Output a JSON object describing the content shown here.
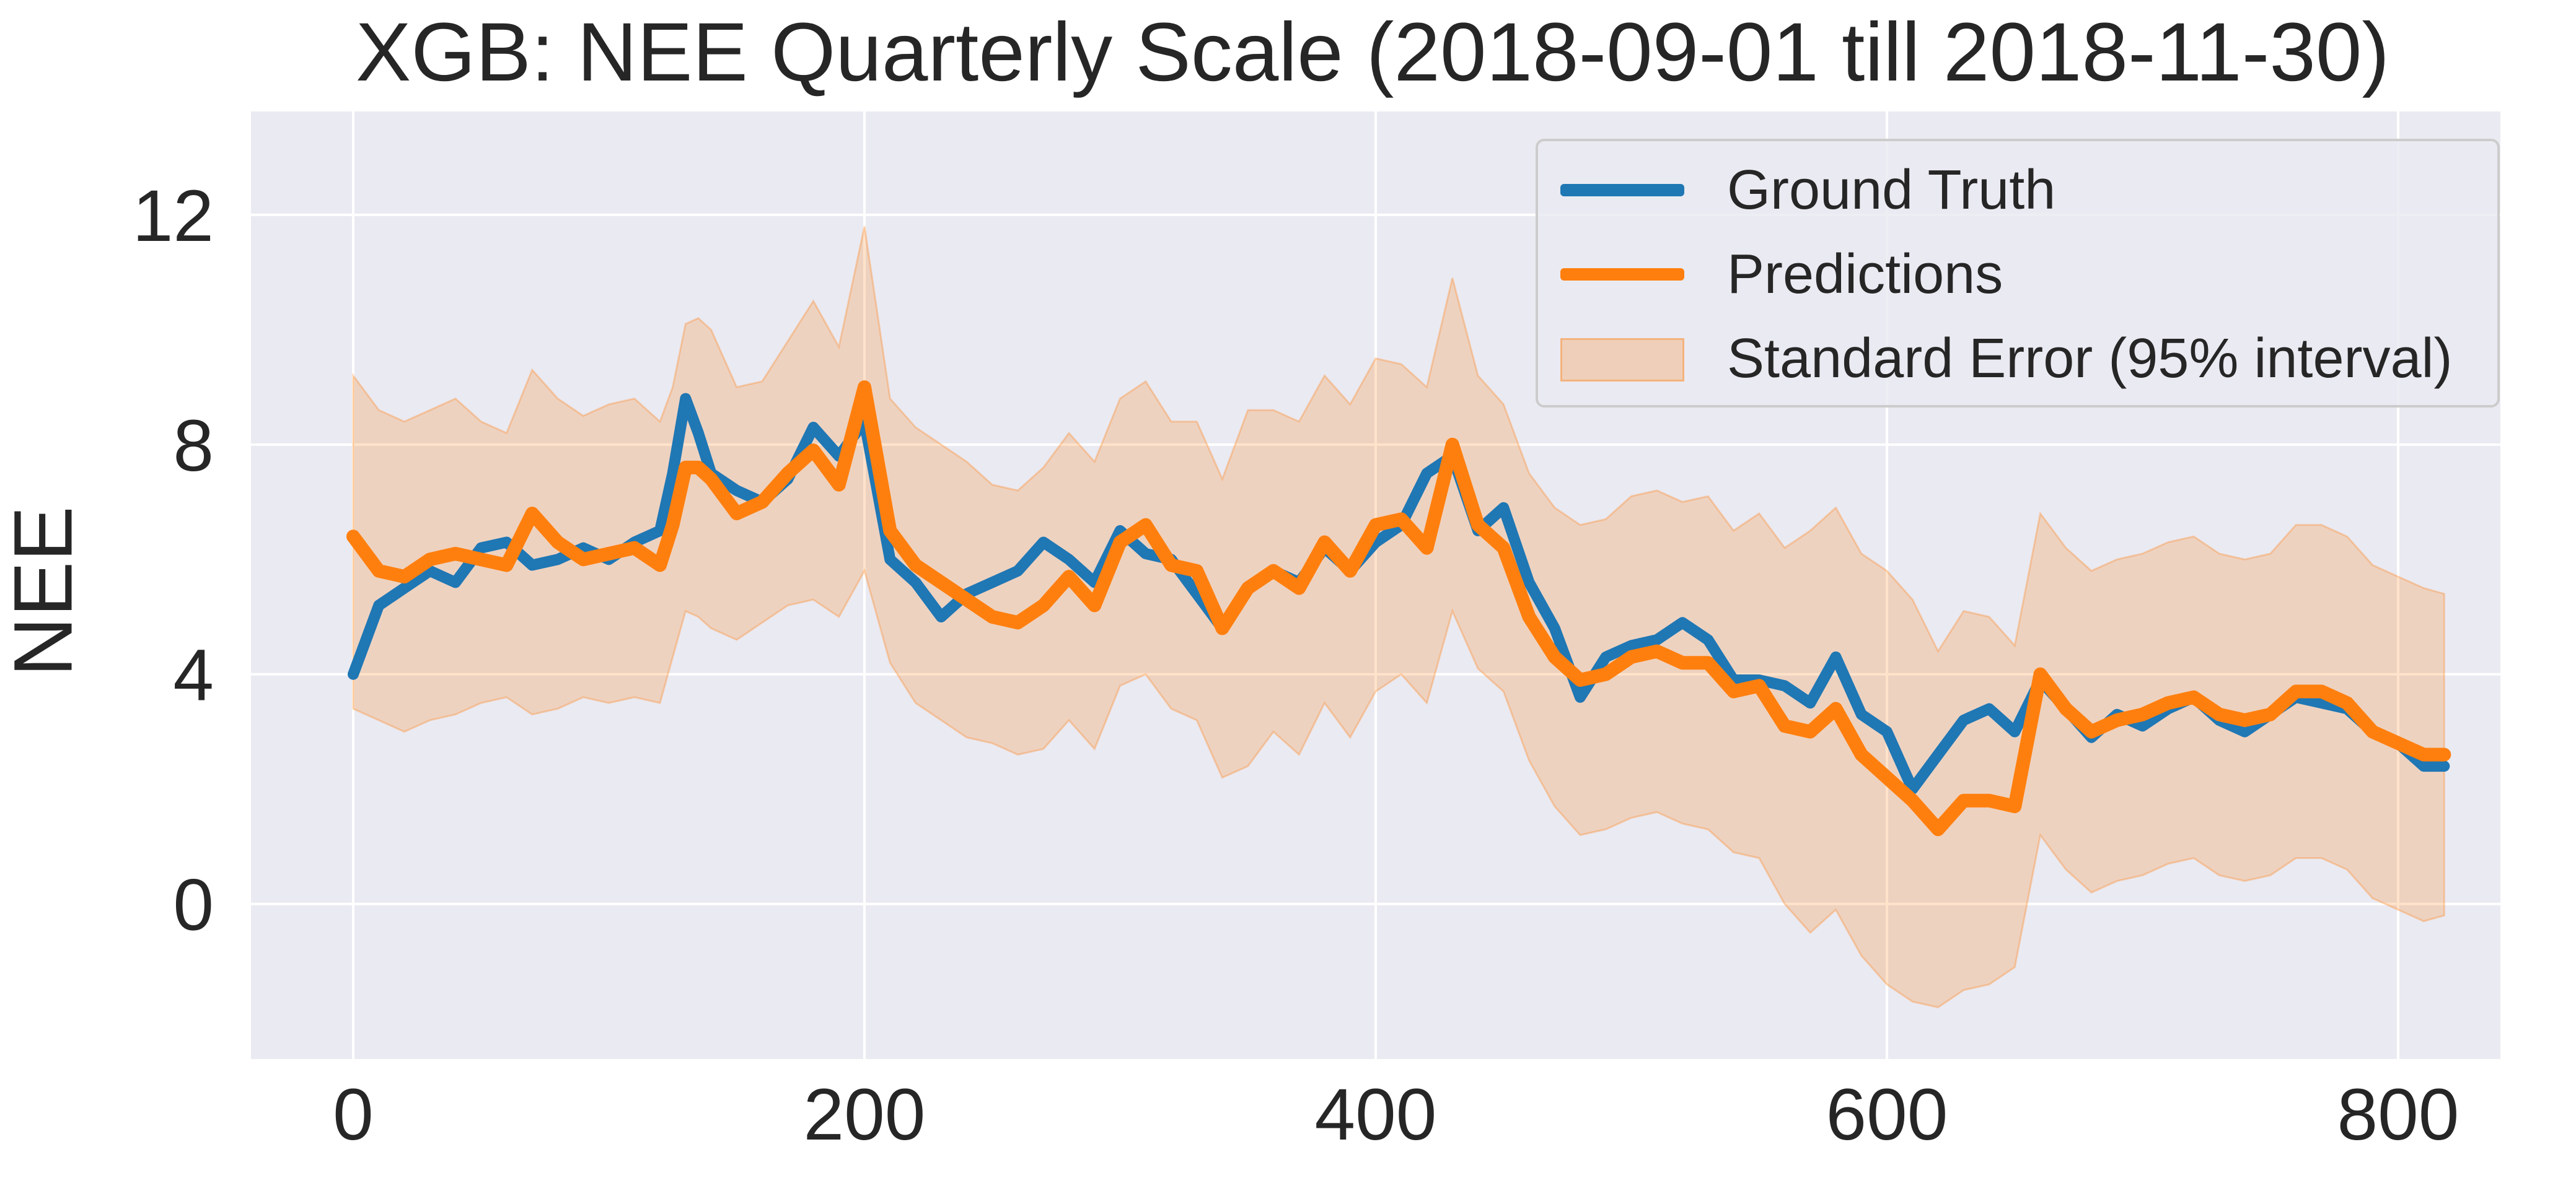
{
  "chart_data": {
    "type": "line",
    "title": "XGB: NEE Quarterly Scale (2018-09-01 till 2018-11-30)",
    "xlabel": "",
    "ylabel": "NEE",
    "xlim": [
      -40,
      840
    ],
    "ylim": [
      -2.7,
      13.8
    ],
    "x_ticks": [
      "0",
      "200",
      "400",
      "600",
      "800"
    ],
    "y_ticks": [
      "0",
      "4",
      "8",
      "12"
    ],
    "grid": true,
    "legend_position": "top-right",
    "colors": {
      "ground_truth": "#1f77b4",
      "predictions": "#ff7f0e",
      "interval_fill": "#ff7f0e",
      "axes_bg": "#eaeaf2",
      "grid": "#ffffff"
    },
    "series": [
      {
        "name": "Ground Truth",
        "x": [
          0,
          10,
          20,
          30,
          40,
          50,
          60,
          70,
          80,
          90,
          100,
          110,
          120,
          125,
          130,
          135,
          140,
          150,
          160,
          170,
          180,
          190,
          200,
          210,
          220,
          230,
          240,
          250,
          260,
          270,
          280,
          290,
          300,
          310,
          320,
          330,
          340,
          350,
          360,
          370,
          380,
          390,
          400,
          410,
          420,
          430,
          440,
          450,
          460,
          470,
          480,
          490,
          500,
          510,
          520,
          530,
          540,
          550,
          560,
          570,
          580,
          590,
          600,
          610,
          620,
          630,
          640,
          650,
          660,
          670,
          680,
          690,
          700,
          710,
          720,
          730,
          740,
          750,
          760,
          770,
          780,
          790,
          800,
          810,
          818
        ],
        "y": [
          4.0,
          5.2,
          5.5,
          5.8,
          5.6,
          6.2,
          6.3,
          5.9,
          6.0,
          6.2,
          6.0,
          6.3,
          6.5,
          7.5,
          8.8,
          8.2,
          7.5,
          7.2,
          7.0,
          7.4,
          8.3,
          7.8,
          8.4,
          6.0,
          5.6,
          5.0,
          5.4,
          5.6,
          5.8,
          6.3,
          6.0,
          5.6,
          6.5,
          6.1,
          6.0,
          5.4,
          4.8,
          5.5,
          5.8,
          5.6,
          6.2,
          5.8,
          6.3,
          6.6,
          7.5,
          7.8,
          6.5,
          6.9,
          5.6,
          4.8,
          3.6,
          4.3,
          4.5,
          4.6,
          4.9,
          4.6,
          3.9,
          3.9,
          3.8,
          3.5,
          4.3,
          3.3,
          3.0,
          2.0,
          2.6,
          3.2,
          3.4,
          3.0,
          3.9,
          3.4,
          2.9,
          3.3,
          3.1,
          3.4,
          3.6,
          3.2,
          3.0,
          3.3,
          3.6,
          3.5,
          3.4,
          3.0,
          2.8,
          2.4,
          2.4
        ]
      },
      {
        "name": "Predictions",
        "x": [
          0,
          10,
          20,
          30,
          40,
          50,
          60,
          70,
          80,
          90,
          100,
          110,
          120,
          125,
          130,
          135,
          140,
          150,
          160,
          170,
          180,
          190,
          200,
          210,
          220,
          230,
          240,
          250,
          260,
          270,
          280,
          290,
          300,
          310,
          320,
          330,
          340,
          350,
          360,
          370,
          380,
          390,
          400,
          410,
          420,
          430,
          440,
          450,
          460,
          470,
          480,
          490,
          500,
          510,
          520,
          530,
          540,
          550,
          560,
          570,
          580,
          590,
          600,
          610,
          620,
          630,
          640,
          650,
          660,
          670,
          680,
          690,
          700,
          710,
          720,
          730,
          740,
          750,
          760,
          770,
          780,
          790,
          800,
          810,
          818
        ],
        "y": [
          6.4,
          5.8,
          5.7,
          6.0,
          6.1,
          6.0,
          5.9,
          6.8,
          6.3,
          6.0,
          6.1,
          6.2,
          5.9,
          6.6,
          7.6,
          7.6,
          7.4,
          6.8,
          7.0,
          7.5,
          7.9,
          7.3,
          9.0,
          6.5,
          5.9,
          5.6,
          5.3,
          5.0,
          4.9,
          5.2,
          5.7,
          5.2,
          6.3,
          6.6,
          5.9,
          5.8,
          4.8,
          5.5,
          5.8,
          5.5,
          6.3,
          5.8,
          6.6,
          6.7,
          6.2,
          8.0,
          6.6,
          6.2,
          5.0,
          4.3,
          3.9,
          4.0,
          4.3,
          4.4,
          4.2,
          4.2,
          3.7,
          3.8,
          3.1,
          3.0,
          3.4,
          2.6,
          2.2,
          1.8,
          1.3,
          1.8,
          1.8,
          1.7,
          4.0,
          3.4,
          3.0,
          3.2,
          3.3,
          3.5,
          3.6,
          3.3,
          3.2,
          3.3,
          3.7,
          3.7,
          3.5,
          3.0,
          2.8,
          2.6,
          2.6
        ]
      }
    ],
    "interval": {
      "name": "Standard Error (95% interval)",
      "x": [
        0,
        10,
        20,
        30,
        40,
        50,
        60,
        70,
        80,
        90,
        100,
        110,
        120,
        125,
        130,
        135,
        140,
        150,
        160,
        170,
        180,
        190,
        200,
        210,
        220,
        230,
        240,
        250,
        260,
        270,
        280,
        290,
        300,
        310,
        320,
        330,
        340,
        350,
        360,
        370,
        380,
        390,
        400,
        410,
        420,
        430,
        440,
        450,
        460,
        470,
        480,
        490,
        500,
        510,
        520,
        530,
        540,
        550,
        560,
        570,
        580,
        590,
        600,
        610,
        620,
        630,
        640,
        650,
        660,
        670,
        680,
        690,
        700,
        710,
        720,
        730,
        740,
        750,
        760,
        770,
        780,
        790,
        800,
        810,
        818
      ],
      "lower": [
        3.4,
        3.2,
        3.0,
        3.2,
        3.3,
        3.5,
        3.6,
        3.3,
        3.4,
        3.6,
        3.5,
        3.6,
        3.5,
        4.3,
        5.1,
        5.0,
        4.8,
        4.6,
        4.9,
        5.2,
        5.3,
        5.0,
        5.8,
        4.2,
        3.5,
        3.2,
        2.9,
        2.8,
        2.6,
        2.7,
        3.2,
        2.7,
        3.8,
        4.0,
        3.4,
        3.2,
        2.2,
        2.4,
        3.0,
        2.6,
        3.5,
        2.9,
        3.7,
        4.0,
        3.5,
        5.1,
        4.1,
        3.7,
        2.5,
        1.7,
        1.2,
        1.3,
        1.5,
        1.6,
        1.4,
        1.3,
        0.9,
        0.8,
        0.0,
        -0.5,
        -0.1,
        -0.9,
        -1.4,
        -1.7,
        -1.8,
        -1.5,
        -1.4,
        -1.1,
        1.2,
        0.6,
        0.2,
        0.4,
        0.5,
        0.7,
        0.8,
        0.5,
        0.4,
        0.5,
        0.8,
        0.8,
        0.6,
        0.1,
        -0.1,
        -0.3,
        -0.2
      ],
      "upper": [
        9.2,
        8.6,
        8.4,
        8.6,
        8.8,
        8.4,
        8.2,
        9.3,
        8.8,
        8.5,
        8.7,
        8.8,
        8.4,
        9.0,
        10.1,
        10.2,
        10.0,
        9.0,
        9.1,
        9.8,
        10.5,
        9.7,
        11.8,
        8.8,
        8.3,
        8.0,
        7.7,
        7.3,
        7.2,
        7.6,
        8.2,
        7.7,
        8.8,
        9.1,
        8.4,
        8.4,
        7.4,
        8.6,
        8.6,
        8.4,
        9.2,
        8.7,
        9.5,
        9.4,
        9.0,
        10.9,
        9.2,
        8.7,
        7.5,
        6.9,
        6.6,
        6.7,
        7.1,
        7.2,
        7.0,
        7.1,
        6.5,
        6.8,
        6.2,
        6.5,
        6.9,
        6.1,
        5.8,
        5.3,
        4.4,
        5.1,
        5.0,
        4.5,
        6.8,
        6.2,
        5.8,
        6.0,
        6.1,
        6.3,
        6.4,
        6.1,
        6.0,
        6.1,
        6.6,
        6.6,
        6.4,
        5.9,
        5.7,
        5.5,
        5.4
      ]
    }
  }
}
